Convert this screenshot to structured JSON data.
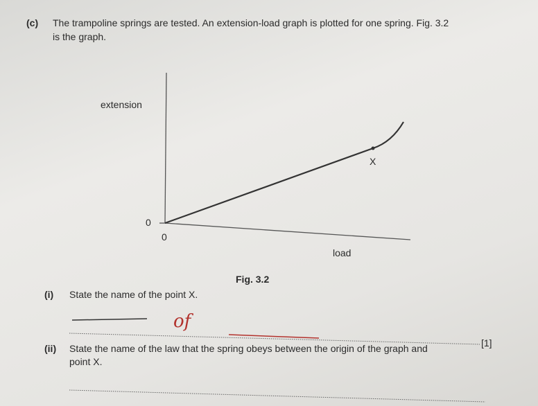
{
  "question": {
    "label": "(c)",
    "text_line1": "The trampoline springs are tested. An extension-load graph is plotted for one spring. Fig. 3.2",
    "text_line2": "is the graph.",
    "figure": {
      "y_axis_label": "extension",
      "x_axis_label": "load",
      "y_origin_label": "0",
      "x_origin_label": "0",
      "point_label": "X",
      "caption": "Fig. 3.2"
    },
    "parts": [
      {
        "label": "(i)",
        "text": "State the name of the point X.",
        "handwritten_answer": "of",
        "marks": "[1]"
      },
      {
        "label": "(ii)",
        "text_line1": "State the name of the law that the spring obeys between the origin of the graph and",
        "text_line2": "point X."
      }
    ]
  }
}
